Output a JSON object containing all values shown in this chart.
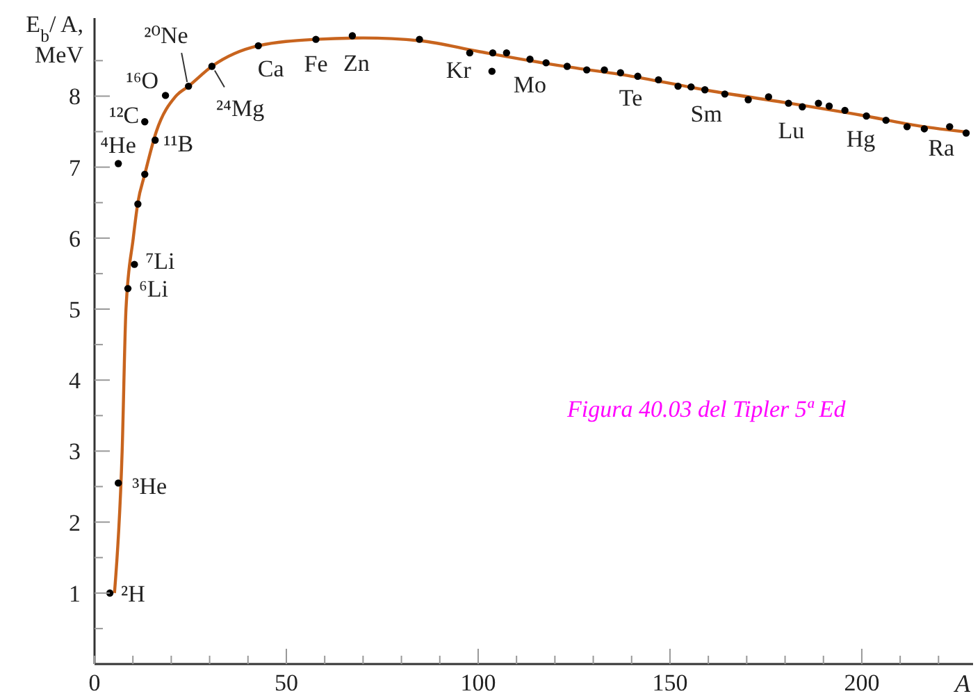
{
  "chart_data": {
    "type": "scatter",
    "ylabel": "E$_{b}$/ A, MeV",
    "xlabel": "A",
    "xlim": [
      0,
      229
    ],
    "ylim": [
      0,
      9.1
    ],
    "xticks": [
      0,
      {
        "value": 10,
        "label": null
      },
      {
        "value": 20,
        "label": null
      },
      {
        "value": 30,
        "label": null
      },
      {
        "value": 40,
        "label": null
      },
      50,
      {
        "value": 60,
        "label": null
      },
      {
        "value": 70,
        "label": null
      },
      {
        "value": 80,
        "label": null
      },
      {
        "value": 90,
        "label": null
      },
      100,
      {
        "value": 110,
        "label": null
      },
      {
        "value": 120,
        "label": null
      },
      {
        "value": 130,
        "label": null
      },
      {
        "value": 140,
        "label": null
      },
      150,
      {
        "value": 160,
        "label": null
      },
      {
        "value": 170,
        "label": null
      },
      {
        "value": 180,
        "label": null
      },
      {
        "value": 190,
        "label": null
      },
      200,
      {
        "value": 210,
        "label": null
      },
      {
        "value": 220,
        "label": null
      }
    ],
    "yticks": [
      {
        "value": 0.5,
        "label": null
      },
      1,
      {
        "value": 1.5,
        "label": null
      },
      2,
      {
        "value": 2.5,
        "label": null
      },
      3,
      {
        "value": 3.5,
        "label": null
      },
      4,
      {
        "value": 4.5,
        "label": null
      },
      5,
      {
        "value": 5.5,
        "label": null
      },
      6,
      {
        "value": 6.5,
        "label": null
      },
      7,
      {
        "value": 7.5,
        "label": null
      },
      8,
      {
        "value": 8.5,
        "label": null
      }
    ],
    "grid": false,
    "legend": false,
    "marker": "circle",
    "series": [
      {
        "type": "scatter",
        "color": "#000000",
        "x": [
          4,
          6.2,
          6.2,
          8.7,
          10.4,
          11.3,
          13.1,
          15.8,
          13.1,
          18.5,
          24.5,
          30.6,
          42.7,
          57.7,
          67.2,
          84.7,
          97.8,
          103.8,
          103.6,
          107.4,
          113.5,
          117.7,
          123.2,
          128.3,
          132.9,
          137.1,
          141.6,
          147.0,
          152.1,
          155.5,
          159.1,
          164.3,
          170.4,
          175.7,
          180.9,
          184.5,
          188.7,
          191.5,
          195.6,
          201.2,
          206.3,
          211.8,
          216.3,
          222.9,
          227.2
        ],
        "values": [
          1.0,
          2.55,
          7.05,
          5.29,
          5.63,
          6.48,
          6.9,
          7.38,
          7.64,
          8.01,
          8.14,
          8.42,
          8.71,
          8.8,
          8.85,
          8.8,
          8.61,
          8.61,
          8.35,
          8.61,
          8.52,
          8.47,
          8.42,
          8.37,
          8.37,
          8.33,
          8.28,
          8.23,
          8.14,
          8.13,
          8.09,
          8.03,
          7.95,
          7.99,
          7.9,
          7.85,
          7.9,
          7.86,
          7.8,
          7.72,
          7.66,
          7.57,
          7.54,
          7.57,
          7.48
        ]
      },
      {
        "type": "line",
        "color": "#c8641e",
        "line_style": "solid",
        "marker": "none",
        "x": [
          5.2,
          7.2,
          8.2,
          10.1,
          11.3,
          13.1,
          16.1,
          21.2,
          24.5,
          30.6,
          42.7,
          57.7,
          70,
          85,
          100,
          120,
          140,
          160,
          180,
          200,
          215,
          228
        ],
        "values": [
          1.0,
          3.0,
          5.0,
          6.0,
          6.5,
          6.9,
          7.5,
          8.0,
          8.14,
          8.42,
          8.71,
          8.8,
          8.82,
          8.78,
          8.63,
          8.44,
          8.28,
          8.08,
          7.91,
          7.73,
          7.58,
          7.49
        ]
      }
    ],
    "annotations": [
      {
        "text": "²H",
        "x": 4,
        "y": 1.0
      },
      {
        "text": "³He",
        "x": 6.2,
        "y": 2.55
      },
      {
        "text": "⁴He",
        "x": 6.2,
        "y": 7.05
      },
      {
        "text": "⁶Li",
        "x": 8.7,
        "y": 5.29
      },
      {
        "text": "⁷Li",
        "x": 10.4,
        "y": 5.63
      },
      {
        "text": "¹¹B",
        "x": 15.8,
        "y": 7.38
      },
      {
        "text": "¹²C",
        "x": 13.1,
        "y": 7.64
      },
      {
        "text": "¹⁶O",
        "x": 18.5,
        "y": 8.01
      },
      {
        "text": "²⁰Ne",
        "x": 24.5,
        "y": 8.14
      },
      {
        "text": "²⁴Mg",
        "x": 30.6,
        "y": 8.42
      },
      {
        "text": "Ca",
        "x": 42.7,
        "y": 8.71
      },
      {
        "text": "Fe",
        "x": 57.7,
        "y": 8.8
      },
      {
        "text": "Zn",
        "x": 67.2,
        "y": 8.85
      },
      {
        "text": "Kr",
        "x": 97.8,
        "y": 8.61
      },
      {
        "text": "Mo",
        "x": 113.5,
        "y": 8.52
      },
      {
        "text": "Te",
        "x": 141.6,
        "y": 8.28
      },
      {
        "text": "Sm",
        "x": 159.1,
        "y": 8.09
      },
      {
        "text": "Lu",
        "x": 180.9,
        "y": 7.9
      },
      {
        "text": "Hg",
        "x": 201.2,
        "y": 7.72
      },
      {
        "text": "Ra",
        "x": 222.9,
        "y": 7.57
      },
      "Figura 40.03 del Tipler 5ª Ed"
    ]
  }
}
